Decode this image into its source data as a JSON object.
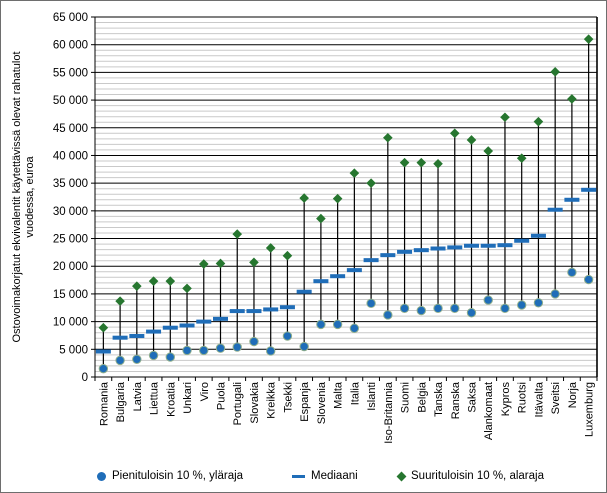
{
  "y_axis": {
    "title_line1": "Ostovoimakorjatut ekvivalentit käytettävissä olevat rahatulot",
    "title_line2": "vuodessa, euroa",
    "min": 0,
    "max": 65000,
    "major_step": 5000,
    "minor_step": 1000,
    "tick_labels": [
      "0",
      "5 000",
      "10 000",
      "15 000",
      "20 000",
      "25 000",
      "30 000",
      "35 000",
      "40 000",
      "45 000",
      "50 000",
      "55 000",
      "60 000",
      "65 000"
    ]
  },
  "legend": {
    "items": [
      {
        "label": "Pienituloisin 10 %, yläraja",
        "marker": "circle"
      },
      {
        "label": "Mediaani",
        "marker": "dash"
      },
      {
        "label": "Suurituloisin 10 %, alaraja",
        "marker": "diamond"
      }
    ]
  },
  "colors": {
    "blue": "#1F6DB8",
    "green": "#26762F",
    "marker_halo": "#8FAE8C",
    "grid_minor": "#C9C9C9",
    "grid_major": "#000000",
    "axis": "#000000"
  },
  "chart_data": {
    "type": "scatter",
    "subtype": "range-column with low dot, median dash and high diamond per category",
    "title": "",
    "xlabel": "",
    "ylabel": "Ostovoimakorjatut ekvivalentit käytettävissä olevat rahatulot vuodessa, euroa",
    "ylim": [
      0,
      65000
    ],
    "grid": true,
    "legend_position": "bottom",
    "categories": [
      "Romania",
      "Bulgaria",
      "Latvia",
      "Liettua",
      "Kroatia",
      "Unkari",
      "Viro",
      "Puola",
      "Portugali",
      "Slovakia",
      "Kreikka",
      "Tsekki",
      "Espanja",
      "Slovenia",
      "Malta",
      "Italia",
      "Islanti",
      "Iso-Britannia",
      "Suomi",
      "Belgia",
      "Tanska",
      "Ranska",
      "Saksa",
      "Alankomaat",
      "Kypros",
      "Ruotsi",
      "Itävalta",
      "Sveitsi",
      "Norja",
      "Luxemburg"
    ],
    "series": [
      {
        "name": "Pienituloisin 10 %, yläraja",
        "marker": "circle",
        "values": [
          1500,
          3000,
          3200,
          3900,
          3600,
          4800,
          4800,
          5200,
          5400,
          6400,
          4700,
          7400,
          5500,
          9500,
          9500,
          8800,
          13300,
          11200,
          12400,
          12000,
          12400,
          12400,
          11600,
          13900,
          12400,
          13000,
          13400,
          15000,
          18900,
          17600
        ]
      },
      {
        "name": "Mediaani",
        "marker": "dash",
        "values": [
          4600,
          7100,
          7400,
          8200,
          8900,
          9300,
          10000,
          10500,
          11900,
          11900,
          12200,
          12600,
          15400,
          17300,
          18200,
          19300,
          21100,
          22000,
          22600,
          22900,
          23200,
          23400,
          23700,
          23700,
          23800,
          24600,
          25500,
          30200,
          32000,
          33800
        ]
      },
      {
        "name": "Suurituloisin 10 %, alaraja",
        "marker": "diamond",
        "values": [
          8900,
          13700,
          16400,
          17300,
          17300,
          16000,
          20400,
          20500,
          25800,
          20700,
          23300,
          21900,
          32300,
          28600,
          32200,
          36800,
          35000,
          43200,
          38700,
          38700,
          38500,
          44000,
          42800,
          40800,
          46900,
          39500,
          46100,
          55100,
          50200,
          61000
        ]
      }
    ]
  }
}
